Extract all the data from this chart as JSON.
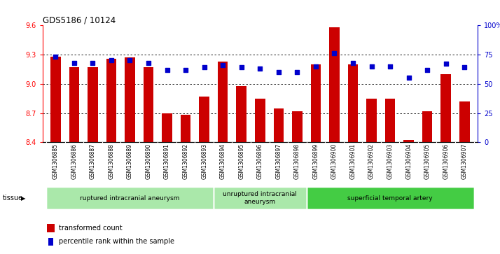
{
  "title": "GDS5186 / 10124",
  "categories": [
    "GSM1306885",
    "GSM1306886",
    "GSM1306887",
    "GSM1306888",
    "GSM1306889",
    "GSM1306890",
    "GSM1306891",
    "GSM1306892",
    "GSM1306893",
    "GSM1306894",
    "GSM1306895",
    "GSM1306896",
    "GSM1306897",
    "GSM1306898",
    "GSM1306899",
    "GSM1306900",
    "GSM1306901",
    "GSM1306902",
    "GSM1306903",
    "GSM1306904",
    "GSM1306905",
    "GSM1306906",
    "GSM1306907"
  ],
  "bar_values": [
    9.28,
    9.17,
    9.17,
    9.26,
    9.27,
    9.17,
    8.7,
    8.68,
    8.87,
    9.23,
    8.98,
    8.85,
    8.75,
    8.72,
    9.2,
    9.58,
    9.2,
    8.85,
    8.85,
    8.42,
    8.72,
    9.1,
    8.82
  ],
  "percentile_values": [
    73,
    68,
    68,
    70,
    70,
    68,
    62,
    62,
    64,
    66,
    64,
    63,
    60,
    60,
    65,
    76,
    68,
    65,
    65,
    55,
    62,
    67,
    64
  ],
  "ylim_left": [
    8.4,
    9.6
  ],
  "ylim_right": [
    0,
    100
  ],
  "yticks_left": [
    8.4,
    8.7,
    9.0,
    9.3,
    9.6
  ],
  "yticks_right": [
    0,
    25,
    50,
    75,
    100
  ],
  "bar_color": "#cc0000",
  "dot_color": "#0000cc",
  "plot_bg": "#ffffff",
  "xtick_bg": "#d8d8d8",
  "group_labels": [
    "ruptured intracranial aneurysm",
    "unruptured intracranial\naneurysm",
    "superficial temporal artery"
  ],
  "group_ranges": [
    [
      0,
      9
    ],
    [
      9,
      14
    ],
    [
      14,
      23
    ]
  ],
  "group_colors": [
    "#aae8aa",
    "#aae8aa",
    "#44cc44"
  ],
  "tissue_label": "tissue",
  "legend_bar_label": "transformed count",
  "legend_dot_label": "percentile rank within the sample"
}
